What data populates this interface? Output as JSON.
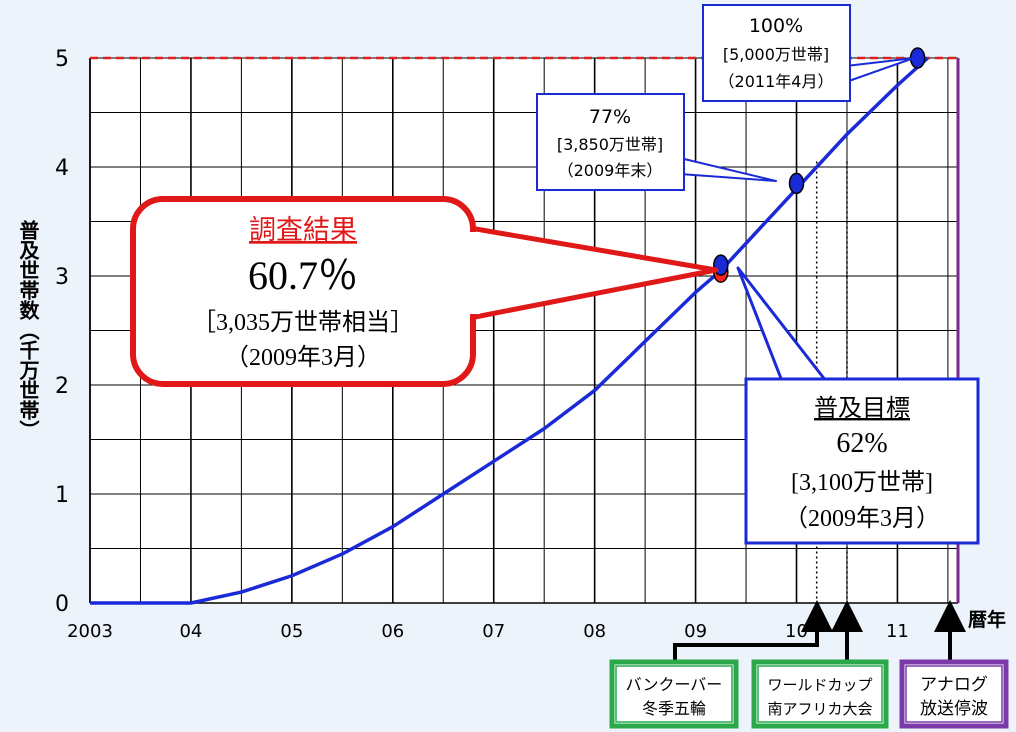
{
  "chart_data": {
    "type": "line",
    "ylabel": "普及世帯数（千万世帯）",
    "xlabel": "暦年",
    "x_tick_labels": [
      "2003",
      "04",
      "05",
      "06",
      "07",
      "08",
      "09",
      "10",
      "11"
    ],
    "x_ticks": [
      2003,
      2004,
      2005,
      2006,
      2007,
      2008,
      2009,
      2010,
      2011
    ],
    "y_ticks": [
      0,
      1,
      2,
      3,
      4,
      5
    ],
    "xlim": [
      2003,
      2011.6
    ],
    "ylim": [
      0,
      5
    ],
    "grid": true,
    "target_line": {
      "y": 5,
      "color": "#e02020"
    },
    "end_marker": {
      "x": 2011.6,
      "color": "#7a2a8a"
    },
    "series": [
      {
        "color": "#1a2ad6",
        "x": [
          2003,
          2003.5,
          2004,
          2004.5,
          2005,
          2005.5,
          2006,
          2006.5,
          2007,
          2007.5,
          2008,
          2008.5,
          2009,
          2009.25,
          2009.5,
          2010,
          2010.5,
          2011,
          2011.3
        ],
        "y": [
          0,
          0,
          0,
          0.1,
          0.25,
          0.45,
          0.7,
          1.0,
          1.3,
          1.6,
          1.95,
          2.4,
          2.85,
          3.05,
          3.3,
          3.8,
          4.3,
          4.75,
          5.0
        ]
      }
    ],
    "points": [
      {
        "x": 2009.25,
        "y": 3.035,
        "color": "#ff2020"
      },
      {
        "x": 2009.25,
        "y": 3.1,
        "color": "#1a2ad6"
      },
      {
        "x": 2010.0,
        "y": 3.85,
        "color": "#1a2ad6"
      },
      {
        "x": 2011.2,
        "y": 5.0,
        "color": "#1a2ad6"
      }
    ],
    "event_lines": [
      {
        "x": 2010.2
      },
      {
        "x": 2010.5
      }
    ],
    "annotations": {
      "result": {
        "title": "調査結果",
        "pct": "60.7％",
        "detail": "［3,035万世帯相当］",
        "date": "（2009年3月）"
      },
      "target": {
        "title": "普及目標",
        "pct": "62%",
        "detail": "[3,100万世帯]",
        "date": "（2009年3月）"
      },
      "p77": {
        "pct": "77%",
        "detail": "[3,850万世帯]",
        "date": "（2009年末）"
      },
      "p100": {
        "pct": "100%",
        "detail": "[5,000万世帯]",
        "date": "（2011年4月）"
      }
    },
    "events": [
      {
        "line1": "バンクーバー",
        "line2": "冬季五輪",
        "color": "#2aa84a"
      },
      {
        "line1": "ワールドカップ",
        "line2": "南アフリカ大会",
        "color": "#2aa84a"
      },
      {
        "line1": "アナログ",
        "line2": "放送停波",
        "color": "#7a3aa8"
      }
    ]
  }
}
